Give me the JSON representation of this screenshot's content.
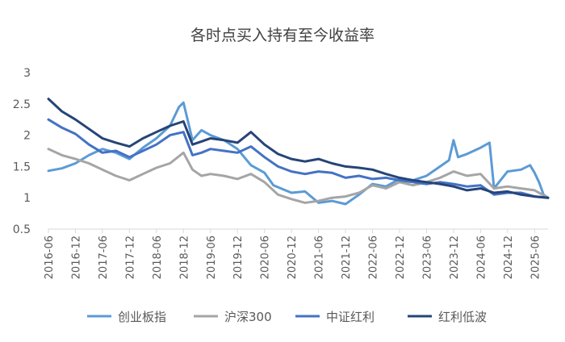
{
  "chart_data": {
    "type": "line",
    "title": "各时点买入持有至今收益率",
    "xlabel": "",
    "ylabel": "",
    "ylim": [
      0.5,
      3
    ],
    "yticks": [
      "0.5",
      "1",
      "1.5",
      "2",
      "2.5",
      "3"
    ],
    "grid": false,
    "legend_position": "bottom",
    "x_tick_labels": [
      "2016-06",
      "2016-12",
      "2017-06",
      "2017-12",
      "2018-06",
      "2018-12",
      "2019-06",
      "2019-12",
      "2020-06",
      "2020-12",
      "2021-06",
      "2021-12",
      "2022-06",
      "2022-12",
      "2023-06",
      "2023-12",
      "2024-06",
      "2024-12",
      "2025-06"
    ],
    "x_start": "2016-06",
    "x_end": "2025-09",
    "series": [
      {
        "name": "创业板指",
        "color": "#5b9bd5",
        "points": [
          [
            "2016-06",
            1.43
          ],
          [
            "2016-09",
            1.47
          ],
          [
            "2016-12",
            1.55
          ],
          [
            "2017-03",
            1.68
          ],
          [
            "2017-06",
            1.78
          ],
          [
            "2017-09",
            1.72
          ],
          [
            "2017-12",
            1.62
          ],
          [
            "2018-03",
            1.8
          ],
          [
            "2018-06",
            1.95
          ],
          [
            "2018-09",
            2.15
          ],
          [
            "2018-11",
            2.45
          ],
          [
            "2018-12",
            2.52
          ],
          [
            "2019-02",
            1.92
          ],
          [
            "2019-04",
            2.08
          ],
          [
            "2019-06",
            2.0
          ],
          [
            "2019-09",
            1.92
          ],
          [
            "2019-12",
            1.78
          ],
          [
            "2020-03",
            1.52
          ],
          [
            "2020-06",
            1.4
          ],
          [
            "2020-08",
            1.2
          ],
          [
            "2020-12",
            1.08
          ],
          [
            "2021-03",
            1.1
          ],
          [
            "2021-06",
            0.92
          ],
          [
            "2021-09",
            0.95
          ],
          [
            "2021-12",
            0.9
          ],
          [
            "2022-03",
            1.05
          ],
          [
            "2022-06",
            1.22
          ],
          [
            "2022-09",
            1.18
          ],
          [
            "2022-12",
            1.3
          ],
          [
            "2023-03",
            1.28
          ],
          [
            "2023-06",
            1.35
          ],
          [
            "2023-09",
            1.5
          ],
          [
            "2023-11",
            1.6
          ],
          [
            "2023-12",
            1.92
          ],
          [
            "2024-01",
            1.65
          ],
          [
            "2024-03",
            1.7
          ],
          [
            "2024-06",
            1.8
          ],
          [
            "2024-08",
            1.88
          ],
          [
            "2024-09",
            1.15
          ],
          [
            "2024-12",
            1.42
          ],
          [
            "2025-03",
            1.45
          ],
          [
            "2025-05",
            1.52
          ],
          [
            "2025-06",
            1.4
          ],
          [
            "2025-07",
            1.25
          ],
          [
            "2025-08",
            1.05
          ],
          [
            "2025-09",
            1.0
          ]
        ]
      },
      {
        "name": "沪深300",
        "color": "#a5a5a5",
        "points": [
          [
            "2016-06",
            1.78
          ],
          [
            "2016-09",
            1.68
          ],
          [
            "2016-12",
            1.62
          ],
          [
            "2017-03",
            1.55
          ],
          [
            "2017-06",
            1.45
          ],
          [
            "2017-09",
            1.35
          ],
          [
            "2017-12",
            1.28
          ],
          [
            "2018-03",
            1.38
          ],
          [
            "2018-06",
            1.48
          ],
          [
            "2018-09",
            1.55
          ],
          [
            "2018-12",
            1.72
          ],
          [
            "2019-02",
            1.45
          ],
          [
            "2019-04",
            1.35
          ],
          [
            "2019-06",
            1.38
          ],
          [
            "2019-09",
            1.35
          ],
          [
            "2019-12",
            1.3
          ],
          [
            "2020-03",
            1.38
          ],
          [
            "2020-06",
            1.25
          ],
          [
            "2020-09",
            1.05
          ],
          [
            "2020-12",
            0.98
          ],
          [
            "2021-03",
            0.92
          ],
          [
            "2021-06",
            0.95
          ],
          [
            "2021-09",
            1.0
          ],
          [
            "2021-12",
            1.02
          ],
          [
            "2022-03",
            1.08
          ],
          [
            "2022-06",
            1.2
          ],
          [
            "2022-09",
            1.15
          ],
          [
            "2022-12",
            1.25
          ],
          [
            "2023-03",
            1.2
          ],
          [
            "2023-06",
            1.25
          ],
          [
            "2023-09",
            1.32
          ],
          [
            "2023-12",
            1.42
          ],
          [
            "2024-03",
            1.35
          ],
          [
            "2024-06",
            1.38
          ],
          [
            "2024-09",
            1.15
          ],
          [
            "2024-12",
            1.18
          ],
          [
            "2025-03",
            1.15
          ],
          [
            "2025-06",
            1.12
          ],
          [
            "2025-09",
            1.0
          ]
        ]
      },
      {
        "name": "中证红利",
        "color": "#4472c4",
        "points": [
          [
            "2016-06",
            2.25
          ],
          [
            "2016-09",
            2.12
          ],
          [
            "2016-12",
            2.02
          ],
          [
            "2017-03",
            1.85
          ],
          [
            "2017-06",
            1.72
          ],
          [
            "2017-09",
            1.75
          ],
          [
            "2017-12",
            1.65
          ],
          [
            "2018-03",
            1.75
          ],
          [
            "2018-06",
            1.85
          ],
          [
            "2018-09",
            2.0
          ],
          [
            "2018-12",
            2.05
          ],
          [
            "2019-02",
            1.68
          ],
          [
            "2019-04",
            1.72
          ],
          [
            "2019-06",
            1.78
          ],
          [
            "2019-09",
            1.75
          ],
          [
            "2019-12",
            1.72
          ],
          [
            "2020-03",
            1.82
          ],
          [
            "2020-06",
            1.65
          ],
          [
            "2020-09",
            1.5
          ],
          [
            "2020-12",
            1.42
          ],
          [
            "2021-03",
            1.38
          ],
          [
            "2021-06",
            1.42
          ],
          [
            "2021-09",
            1.4
          ],
          [
            "2021-12",
            1.32
          ],
          [
            "2022-03",
            1.35
          ],
          [
            "2022-06",
            1.3
          ],
          [
            "2022-09",
            1.32
          ],
          [
            "2022-12",
            1.28
          ],
          [
            "2023-03",
            1.25
          ],
          [
            "2023-06",
            1.22
          ],
          [
            "2023-09",
            1.25
          ],
          [
            "2023-12",
            1.22
          ],
          [
            "2024-03",
            1.18
          ],
          [
            "2024-06",
            1.2
          ],
          [
            "2024-09",
            1.05
          ],
          [
            "2024-12",
            1.08
          ],
          [
            "2025-03",
            1.08
          ],
          [
            "2025-06",
            1.02
          ],
          [
            "2025-09",
            1.0
          ]
        ]
      },
      {
        "name": "红利低波",
        "color": "#264478",
        "points": [
          [
            "2016-06",
            2.58
          ],
          [
            "2016-09",
            2.38
          ],
          [
            "2016-12",
            2.25
          ],
          [
            "2017-03",
            2.1
          ],
          [
            "2017-06",
            1.95
          ],
          [
            "2017-09",
            1.88
          ],
          [
            "2017-12",
            1.82
          ],
          [
            "2018-03",
            1.95
          ],
          [
            "2018-06",
            2.05
          ],
          [
            "2018-09",
            2.15
          ],
          [
            "2018-12",
            2.22
          ],
          [
            "2019-02",
            1.85
          ],
          [
            "2019-04",
            1.9
          ],
          [
            "2019-06",
            1.95
          ],
          [
            "2019-09",
            1.92
          ],
          [
            "2019-12",
            1.88
          ],
          [
            "2020-03",
            2.05
          ],
          [
            "2020-06",
            1.85
          ],
          [
            "2020-09",
            1.7
          ],
          [
            "2020-12",
            1.62
          ],
          [
            "2021-03",
            1.58
          ],
          [
            "2021-06",
            1.62
          ],
          [
            "2021-09",
            1.55
          ],
          [
            "2021-12",
            1.5
          ],
          [
            "2022-03",
            1.48
          ],
          [
            "2022-06",
            1.45
          ],
          [
            "2022-09",
            1.38
          ],
          [
            "2022-12",
            1.32
          ],
          [
            "2023-03",
            1.28
          ],
          [
            "2023-06",
            1.25
          ],
          [
            "2023-09",
            1.22
          ],
          [
            "2023-12",
            1.18
          ],
          [
            "2024-03",
            1.12
          ],
          [
            "2024-06",
            1.15
          ],
          [
            "2024-09",
            1.08
          ],
          [
            "2024-12",
            1.1
          ],
          [
            "2025-03",
            1.05
          ],
          [
            "2025-06",
            1.02
          ],
          [
            "2025-09",
            1.0
          ]
        ]
      }
    ]
  }
}
